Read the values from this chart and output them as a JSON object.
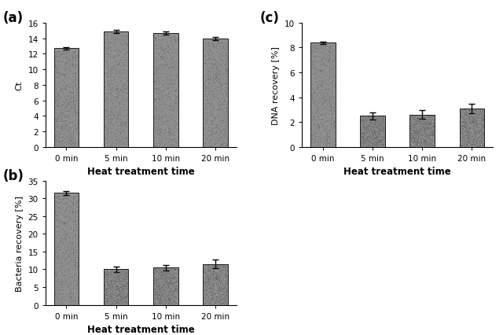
{
  "categories": [
    "0 min",
    "5 min",
    "10 min",
    "20 min"
  ],
  "panel_a": {
    "label": "(a)",
    "values": [
      12.7,
      14.9,
      14.7,
      14.0
    ],
    "errors": [
      0.2,
      0.2,
      0.2,
      0.2
    ],
    "ylabel": "Ct",
    "xlabel": "Heat treatment time",
    "ylim": [
      0,
      16
    ],
    "yticks": [
      0,
      2,
      4,
      6,
      8,
      10,
      12,
      14,
      16
    ]
  },
  "panel_b": {
    "label": "(b)",
    "values": [
      31.5,
      10.0,
      10.5,
      11.5
    ],
    "errors": [
      0.5,
      0.7,
      0.8,
      1.2
    ],
    "ylabel": "Bacteria recovery [%]",
    "xlabel": "Heat treatment time",
    "ylim": [
      0,
      35
    ],
    "yticks": [
      0,
      5,
      10,
      15,
      20,
      25,
      30,
      35
    ]
  },
  "panel_c": {
    "label": "(c)",
    "values": [
      8.4,
      2.5,
      2.6,
      3.1
    ],
    "errors": [
      0.1,
      0.3,
      0.35,
      0.4
    ],
    "ylabel": "DNA recovery [%]",
    "xlabel": "Heat treatment time",
    "ylim": [
      0,
      10
    ],
    "yticks": [
      0,
      2,
      4,
      6,
      8,
      10
    ]
  },
  "bar_color": "#909090",
  "bar_width": 0.5,
  "tick_fontsize": 7.5,
  "panel_label_fontsize": 12,
  "xlabel_fontsize": 8.5,
  "ylabel_fontsize": 8,
  "bg_color": "#ffffff"
}
